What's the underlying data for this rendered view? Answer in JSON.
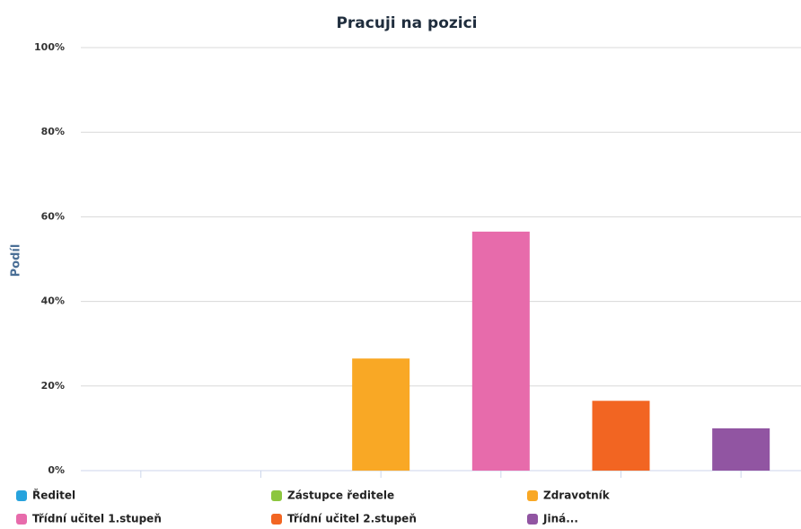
{
  "chart_data": {
    "type": "bar",
    "title": "Pracuji na pozici",
    "y_label": "Podíl",
    "categories": [
      "Ředitel",
      "Zástupce ředitele",
      "Zdravotník",
      "Třídní učitel 1.stupeň",
      "Třídní učitel 2.stupeň",
      "Jiná..."
    ],
    "values": [
      0,
      0,
      26.5,
      56.5,
      16.5,
      10
    ],
    "colors": [
      "#27a3dd",
      "#8cc63f",
      "#f9a825",
      "#e76bab",
      "#f26522",
      "#9155a2"
    ],
    "ylim": [
      0,
      100
    ],
    "yticks": [
      {
        "value": 0,
        "label": "0%"
      },
      {
        "value": 20,
        "label": "20%"
      },
      {
        "value": 40,
        "label": "40%"
      },
      {
        "value": 60,
        "label": "60%"
      },
      {
        "value": 80,
        "label": "80%"
      },
      {
        "value": 100,
        "label": "100%"
      }
    ],
    "grid": true,
    "legend": "bottom"
  }
}
